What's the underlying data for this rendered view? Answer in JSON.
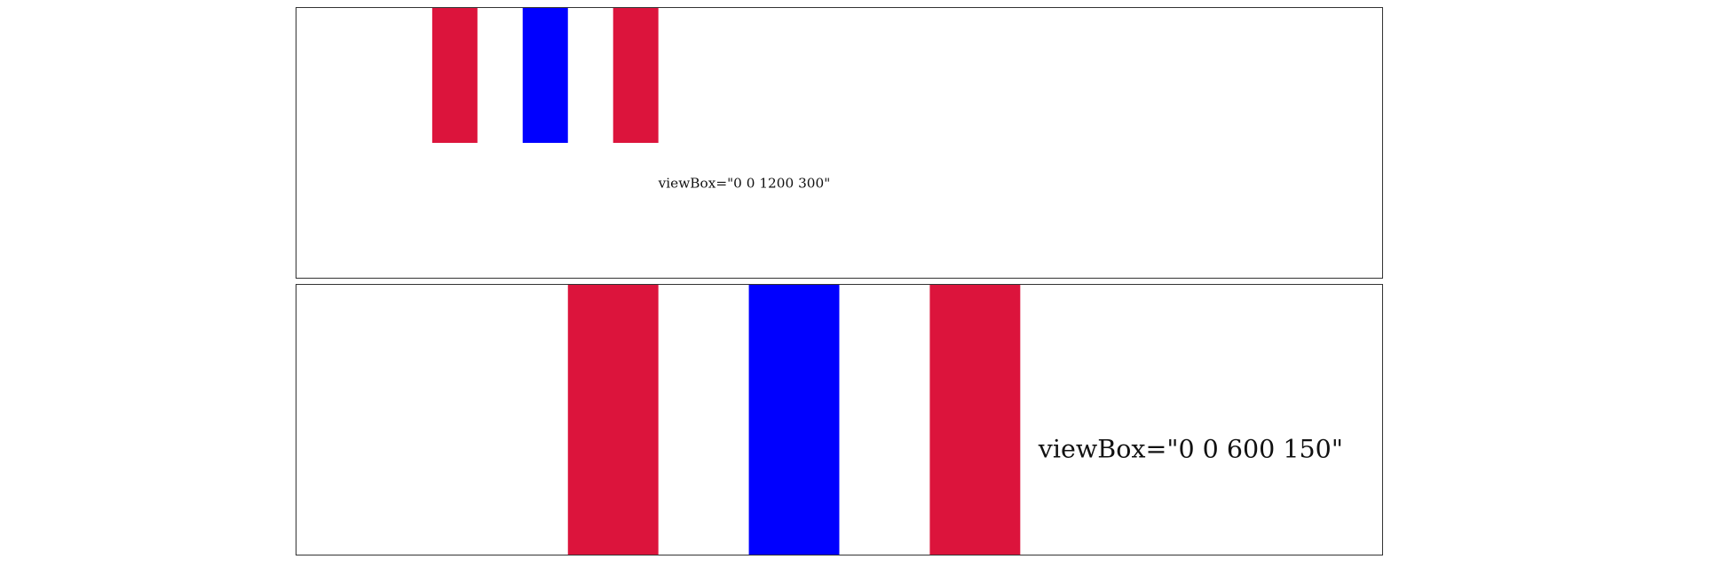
{
  "panels": [
    {
      "id": "top",
      "label": "viewBox=\"0 0 1200 300\"",
      "stripes": [
        {
          "name": "left-red-stripe",
          "color": "#DC143C"
        },
        {
          "name": "center-blue-stripe",
          "color": "#0000FF"
        },
        {
          "name": "right-red-stripe",
          "color": "#DC143C"
        }
      ]
    },
    {
      "id": "bottom",
      "label": "viewBox=\"0 0 600 150\"",
      "stripes": [
        {
          "name": "left-red-stripe",
          "color": "#DC143C"
        },
        {
          "name": "center-blue-stripe",
          "color": "#0000FF"
        },
        {
          "name": "right-red-stripe",
          "color": "#DC143C"
        }
      ]
    }
  ]
}
